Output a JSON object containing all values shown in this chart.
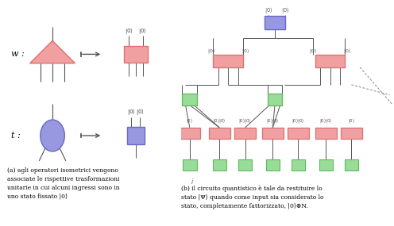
{
  "fig_width": 4.96,
  "fig_height": 2.85,
  "dpi": 100,
  "red_color": "#E07070",
  "blue_color": "#6868C8",
  "green_color": "#60B860",
  "red_face": "#F0A0A0",
  "blue_face": "#9898E0",
  "green_face": "#98DC98",
  "line_color": "#555555",
  "caption_a": "(a) agli operatori isometrici vengono\nassociate le rispettive trasformazioni\nunitarie in cui alcuni ingressi sono in\nuno stato fissato |0⟩",
  "caption_b": "(b) il circuito quantistico è tale da restituire lo\nstato |Ψ⟩ quando come input sia considerato lo\nstato, completamente fattorizzato, |0⟩⊗N.",
  "label_w": "w :",
  "label_t": "t :"
}
